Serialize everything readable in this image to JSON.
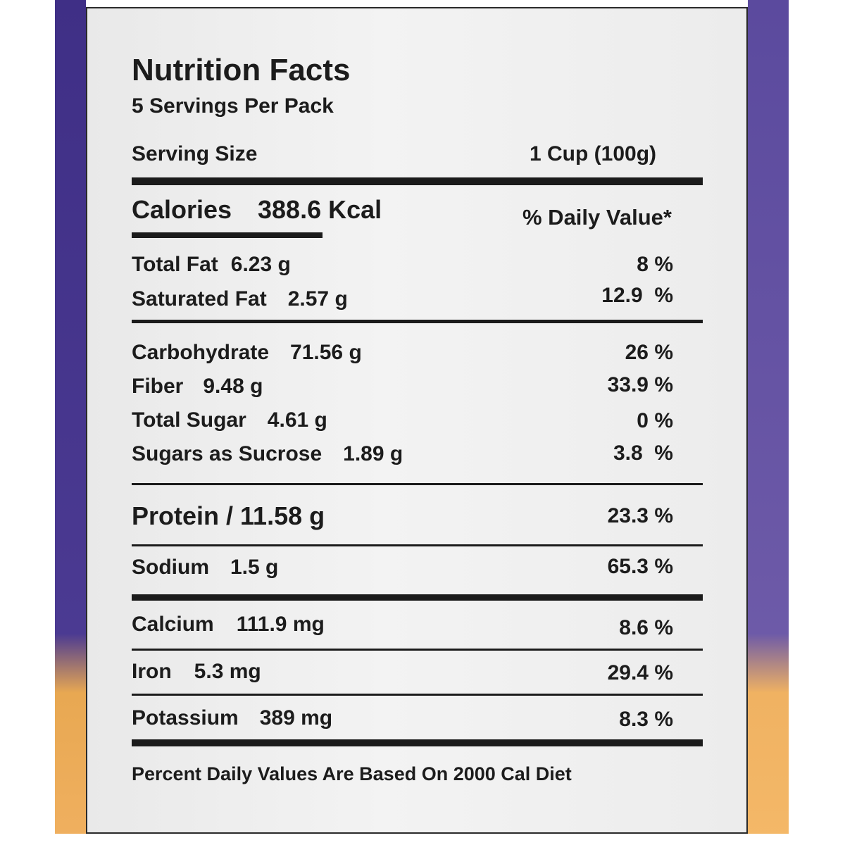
{
  "label": {
    "title": "Nutrition Facts",
    "servings": "5 Servings Per Pack",
    "serving_size_label": "Serving Size",
    "serving_size_value": "1 Cup (100g)",
    "calories_label": "Calories",
    "calories_value": "388.6 Kcal",
    "daily_value_header": "% Daily Value*",
    "footnote": "Percent Daily Values Are Based On 2000 Cal Diet",
    "nutrients": [
      {
        "name": "Total Fat",
        "amount": "6.23 g",
        "dv": "8 %"
      },
      {
        "name": "Saturated Fat",
        "amount": "2.57 g",
        "dv": "12.9  %"
      },
      {
        "name": "Carbohydrate",
        "amount": "71.56 g",
        "dv": "26 %"
      },
      {
        "name": "Fiber",
        "amount": "9.48 g",
        "dv": "33.9 %"
      },
      {
        "name": "Total Sugar",
        "amount": "4.61 g",
        "dv": "0 %"
      },
      {
        "name": "Sugars as Sucrose",
        "amount": "1.89 g",
        "dv": "3.8  %"
      },
      {
        "name": "Protein / 11.58 g",
        "amount": "",
        "dv": "23.3 %"
      },
      {
        "name": "Sodium",
        "amount": "1.5 g",
        "dv": "65.3 %"
      },
      {
        "name": "Calcium",
        "amount": "111.9 mg",
        "dv": "8.6 %"
      },
      {
        "name": "Iron",
        "amount": "5.3 mg",
        "dv": "29.4 %"
      },
      {
        "name": "Potassium",
        "amount": "389 mg",
        "dv": "8.3 %"
      }
    ]
  },
  "colors": {
    "package_purple": "#4b3a92",
    "package_orange": "#f0b060",
    "label_background": "#efefef",
    "ink": "#1c1c1c"
  }
}
